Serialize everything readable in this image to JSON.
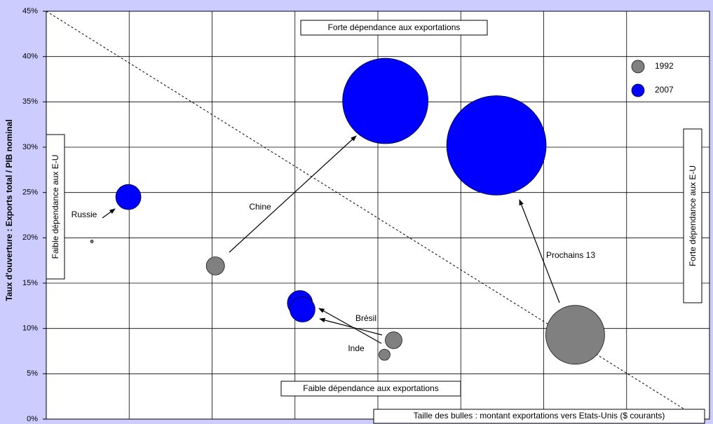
{
  "chart_data": {
    "type": "bubble",
    "y_label": "Taux d'ouverture : Exports total / PIB nominal",
    "xlim": [
      0,
      8
    ],
    "xticks": [
      1,
      2,
      3,
      4,
      5,
      6,
      7
    ],
    "ylim": [
      0,
      45
    ],
    "yticks": [
      {
        "value": 0,
        "label": "0%"
      },
      {
        "value": 5,
        "label": "5%"
      },
      {
        "value": 10,
        "label": "10%"
      },
      {
        "value": 15,
        "label": "15%"
      },
      {
        "value": 20,
        "label": "20%"
      },
      {
        "value": 25,
        "label": "25%"
      },
      {
        "value": 30,
        "label": "30%"
      },
      {
        "value": 35,
        "label": "35%"
      },
      {
        "value": 40,
        "label": "40%"
      },
      {
        "value": 45,
        "label": "45%"
      }
    ],
    "grid": true,
    "legend": "top-right",
    "series": [
      {
        "name": "1992",
        "color": "#808080",
        "x": [
          0.55,
          2.04,
          4.19,
          4.08,
          6.38
        ],
        "values": [
          19.6,
          16.9,
          8.7,
          7.1,
          9.3
        ],
        "sizes": [
          4,
          169,
          144,
          64,
          1764
        ]
      },
      {
        "name": "2007",
        "color": "#0000ff",
        "x": [
          0.99,
          4.09,
          3.06,
          3.09,
          5.43
        ],
        "values": [
          24.5,
          35.1,
          12.8,
          12.1,
          30.2
        ],
        "sizes": [
          324,
          3721,
          324,
          324,
          5041
        ]
      }
    ],
    "annotations": [
      "Russie",
      "Chine",
      "Brésil",
      "Inde",
      "Prochains 13"
    ],
    "notes": [
      "Forte dépendance aux exportations",
      "Faible dépendance aux exportations",
      "Faible dépendance aux E-U",
      "Forte dépendance aux E-U",
      "Taille des bulles : montant exportations vers Etats-Unis ($ courants)"
    ]
  }
}
